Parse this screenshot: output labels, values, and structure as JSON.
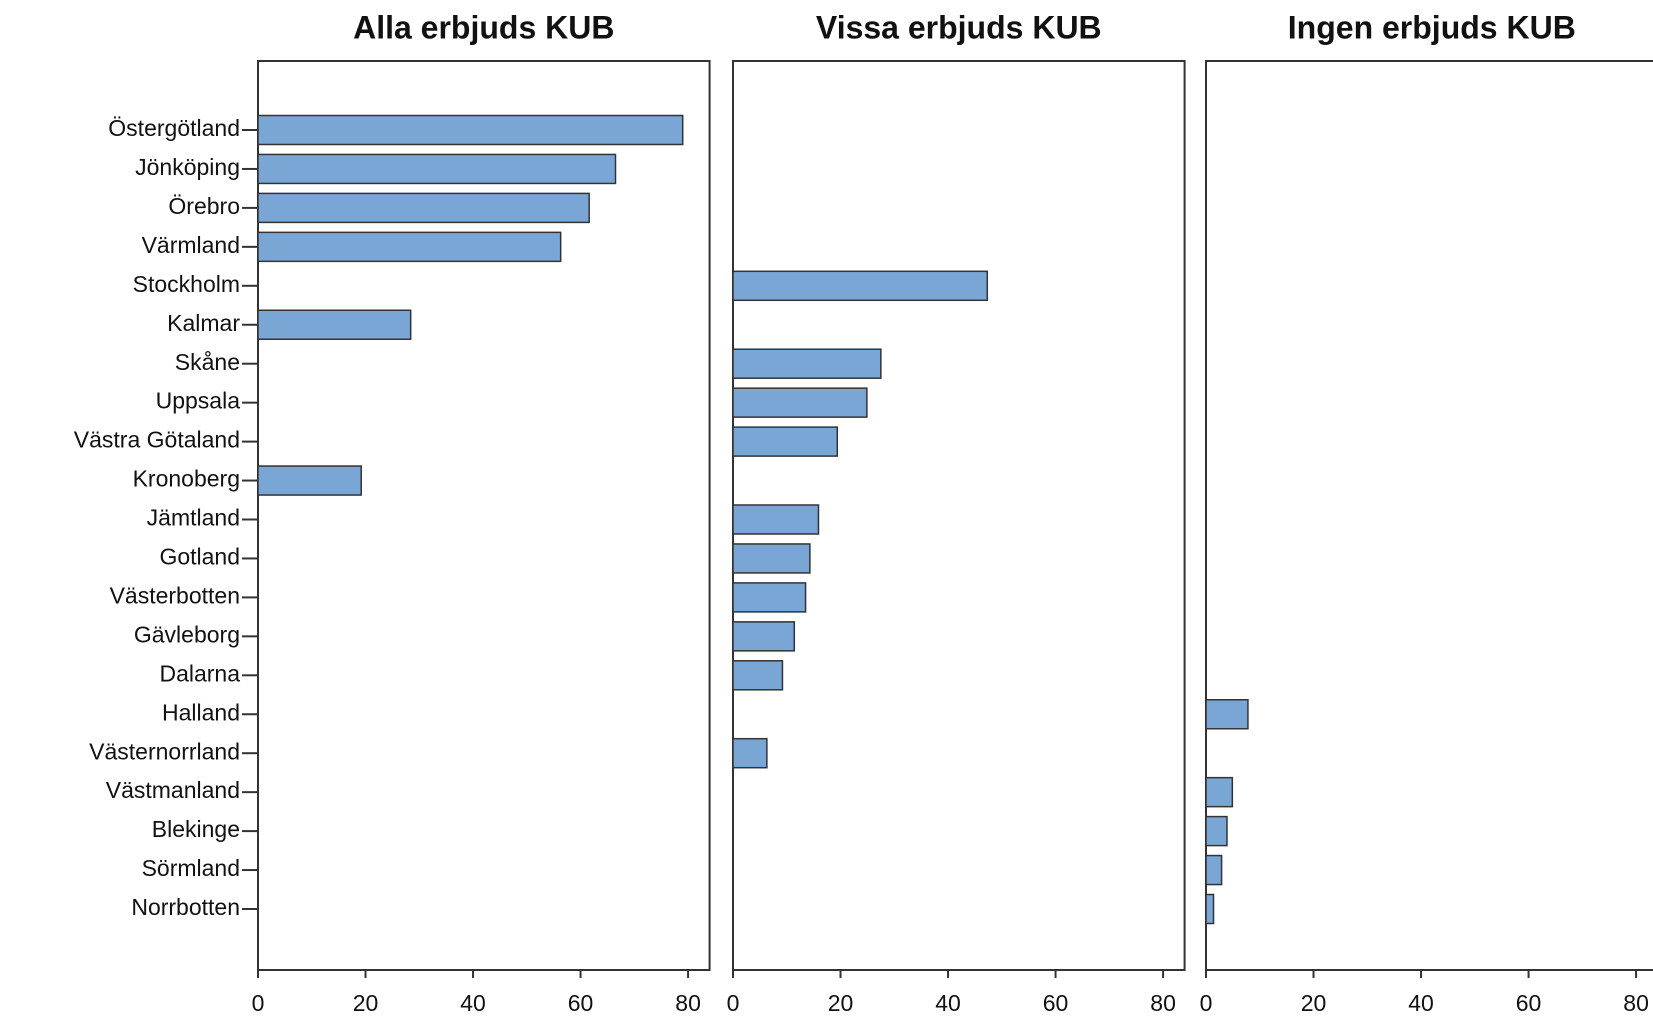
{
  "chart_data": {
    "type": "bar",
    "orientation": "horizontal",
    "categories": [
      "Östergötland",
      "Jönköping",
      "Örebro",
      "Värmland",
      "Stockholm",
      "Kalmar",
      "Skåne",
      "Uppsala",
      "Västra Götaland",
      "Kronoberg",
      "Jämtland",
      "Gotland",
      "Västerbotten",
      "Gävleborg",
      "Dalarna",
      "Halland",
      "Västernorrland",
      "Västmanland",
      "Blekinge",
      "Sörmland",
      "Norrbotten"
    ],
    "panels": [
      {
        "title": "Alla erbjuds KUB",
        "values": [
          79,
          66.5,
          61.6,
          56.3,
          null,
          28.4,
          null,
          null,
          null,
          19.2,
          null,
          null,
          null,
          null,
          null,
          null,
          null,
          null,
          null,
          null,
          null
        ]
      },
      {
        "title": "Vissa erbjuds KUB",
        "values": [
          null,
          null,
          null,
          null,
          47.3,
          null,
          27.5,
          24.9,
          19.4,
          null,
          15.9,
          14.3,
          13.5,
          11.4,
          9.2,
          null,
          6.3,
          null,
          null,
          null,
          null
        ]
      },
      {
        "title": "Ingen erbjuds KUB",
        "values": [
          null,
          null,
          null,
          null,
          null,
          null,
          null,
          null,
          null,
          null,
          null,
          null,
          null,
          null,
          null,
          7.8,
          null,
          4.9,
          3.9,
          2.9,
          1.4
        ]
      }
    ],
    "color": "#7aa6d6",
    "xlim": [
      0,
      84
    ],
    "xticks": [
      0,
      20,
      40,
      60,
      80
    ]
  }
}
